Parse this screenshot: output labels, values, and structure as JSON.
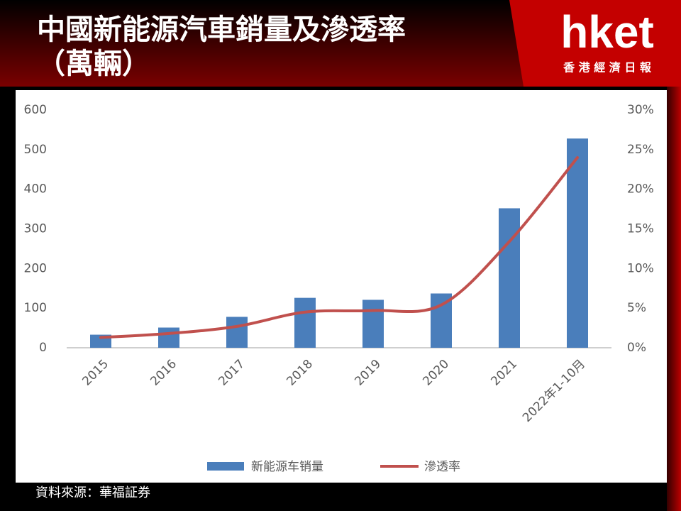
{
  "chart_data": {
    "type": "bar-line",
    "title": "中國新能源汽車銷量及滲透率（萬輛）",
    "logo": "hket",
    "logo_tagline": "香 港 經 濟 日 報",
    "source": "資料來源：華福証券",
    "categories": [
      "2015",
      "2016",
      "2017",
      "2018",
      "2019",
      "2020",
      "2021",
      "2022年1-10月"
    ],
    "series": [
      {
        "name": "新能源车销量",
        "type": "bar",
        "color": "#4a7ebb",
        "values": [
          33,
          51,
          78,
          126,
          121,
          137,
          352,
          528
        ]
      },
      {
        "name": "滲透率",
        "type": "line",
        "axis": "y2",
        "color": "#c0504d",
        "values": [
          1.3,
          1.8,
          2.7,
          4.5,
          4.7,
          5.4,
          13.4,
          24
        ]
      }
    ],
    "ylim": [
      0,
      600
    ],
    "yticks": [
      0,
      100,
      200,
      300,
      400,
      500,
      600
    ],
    "y2lim": [
      0,
      30
    ],
    "y2ticks": [
      {
        "value": 0,
        "label": "0%"
      },
      {
        "value": 5,
        "label": "5%"
      },
      {
        "value": 10,
        "label": "10%"
      },
      {
        "value": 15,
        "label": "15%"
      },
      {
        "value": 20,
        "label": "20%"
      },
      {
        "value": 25,
        "label": "25%"
      },
      {
        "value": 30,
        "label": "30%"
      }
    ],
    "legend": "bottom",
    "grid": false
  }
}
